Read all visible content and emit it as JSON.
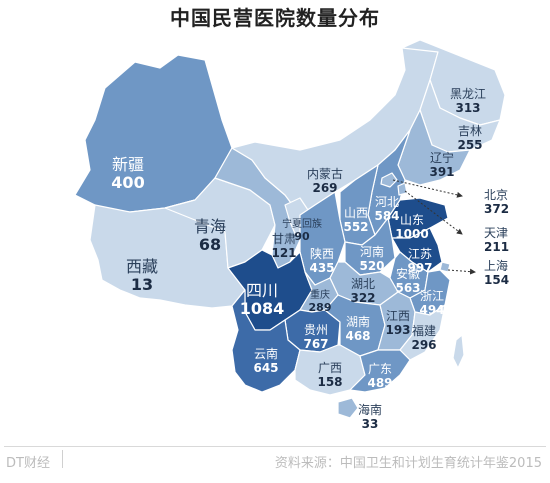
{
  "title": "中国民营医院数量分布",
  "footer": {
    "brand": "DT财经",
    "source": "资料来源：中国卫生和计划生育统计年鉴2015"
  },
  "colors": {
    "lightest": "#c9d9ea",
    "light": "#9db9d8",
    "mid": "#6f97c5",
    "dark": "#3d6ba8",
    "darkest": "#1e4d8c",
    "label_light": "#2a3f5a",
    "label_dark": "#ffffff"
  },
  "map_data": {
    "metric": "民营医院数量",
    "provinces": [
      {
        "name": "黑龙江",
        "value": "313"
      },
      {
        "name": "吉林",
        "value": "255"
      },
      {
        "name": "辽宁",
        "value": "391"
      },
      {
        "name": "北京",
        "value": "372"
      },
      {
        "name": "天津",
        "value": "211"
      },
      {
        "name": "上海",
        "value": "154"
      },
      {
        "name": "新疆",
        "value": "400"
      },
      {
        "name": "内蒙古",
        "value": "269"
      },
      {
        "name": "青海",
        "value": "68"
      },
      {
        "name": "宁夏回族",
        "value": "90"
      },
      {
        "name": "甘肃",
        "value": "121"
      },
      {
        "name": "山西",
        "value": "552"
      },
      {
        "name": "河北",
        "value": "584"
      },
      {
        "name": "山东",
        "value": "1000"
      },
      {
        "name": "陕西",
        "value": "435"
      },
      {
        "name": "河南",
        "value": "520"
      },
      {
        "name": "江苏",
        "value": "997"
      },
      {
        "name": "西藏",
        "value": "13"
      },
      {
        "name": "安徽",
        "value": "563"
      },
      {
        "name": "四川",
        "value": "1084"
      },
      {
        "name": "湖北",
        "value": "322"
      },
      {
        "name": "浙江",
        "value": "494"
      },
      {
        "name": "重庆",
        "value": "289"
      },
      {
        "name": "江西",
        "value": "193"
      },
      {
        "name": "湖南",
        "value": "468"
      },
      {
        "name": "贵州",
        "value": "767"
      },
      {
        "name": "福建",
        "value": "296"
      },
      {
        "name": "云南",
        "value": "645"
      },
      {
        "name": "广西",
        "value": "158"
      },
      {
        "name": "广东",
        "value": "489"
      },
      {
        "name": "海南",
        "value": "33"
      }
    ]
  }
}
